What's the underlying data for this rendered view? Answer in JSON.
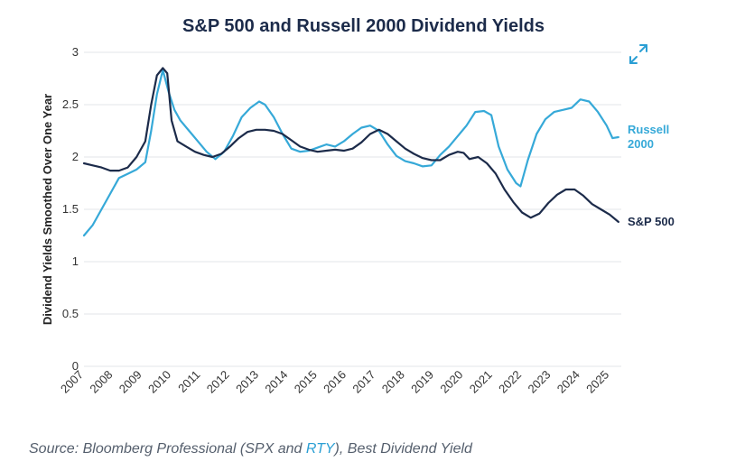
{
  "title": "S&P 500 and Russell 2000 Dividend Yields",
  "expand_icon": "expand-arrows-icon",
  "source": {
    "prefix": "Source: Bloomberg Professional (SPX and ",
    "link": "RTY",
    "suffix": "), Best Dividend Yield"
  },
  "colors": {
    "sp500": "#1c2b4a",
    "russell": "#36a9d8",
    "grid": "#e3e5e8",
    "text": "#333333"
  },
  "chart_data": {
    "type": "line",
    "title": "S&P 500 and Russell 2000 Dividend Yields",
    "xlabel": "",
    "ylabel": "Dividend Yields Smoothed Over One Year",
    "xlim": [
      2007,
      2025.4
    ],
    "ylim": [
      0,
      3
    ],
    "yticks": [
      "0",
      "0.5",
      "1",
      "1.5",
      "2",
      "2.5",
      "3"
    ],
    "xticks": [
      "2007",
      "2008",
      "2009",
      "2010",
      "2011",
      "2012",
      "2013",
      "2014",
      "2015",
      "2016",
      "2017",
      "2018",
      "2019",
      "2020",
      "2021",
      "2022",
      "2023",
      "2024",
      "2025"
    ],
    "grid": "horizontal",
    "legend": "inline-right",
    "series": [
      {
        "name": "S&P 500",
        "color": "#1c2b4a",
        "label_lines": [
          "S&P 500"
        ],
        "x": [
          2007.0,
          2007.3,
          2007.6,
          2007.9,
          2008.2,
          2008.5,
          2008.8,
          2009.1,
          2009.3,
          2009.5,
          2009.7,
          2009.85,
          2010.0,
          2010.2,
          2010.5,
          2010.8,
          2011.1,
          2011.4,
          2011.7,
          2012.0,
          2012.3,
          2012.6,
          2012.9,
          2013.2,
          2013.5,
          2013.8,
          2014.1,
          2014.4,
          2014.7,
          2015.0,
          2015.3,
          2015.6,
          2015.9,
          2016.2,
          2016.5,
          2016.8,
          2017.1,
          2017.4,
          2017.7,
          2018.0,
          2018.3,
          2018.6,
          2018.9,
          2019.2,
          2019.5,
          2019.8,
          2020.0,
          2020.2,
          2020.5,
          2020.8,
          2021.1,
          2021.4,
          2021.7,
          2022.0,
          2022.3,
          2022.6,
          2022.9,
          2023.2,
          2023.5,
          2023.8,
          2024.1,
          2024.4,
          2024.7,
          2025.0,
          2025.3
        ],
        "y": [
          1.94,
          1.92,
          1.9,
          1.87,
          1.87,
          1.9,
          2.0,
          2.15,
          2.5,
          2.78,
          2.85,
          2.8,
          2.35,
          2.15,
          2.1,
          2.05,
          2.02,
          2.0,
          2.03,
          2.1,
          2.18,
          2.24,
          2.26,
          2.26,
          2.25,
          2.22,
          2.16,
          2.1,
          2.07,
          2.05,
          2.06,
          2.07,
          2.06,
          2.08,
          2.14,
          2.22,
          2.26,
          2.22,
          2.15,
          2.08,
          2.03,
          1.99,
          1.97,
          1.97,
          2.02,
          2.05,
          2.04,
          1.98,
          2.0,
          1.94,
          1.84,
          1.69,
          1.57,
          1.47,
          1.42,
          1.46,
          1.56,
          1.64,
          1.69,
          1.69,
          1.63,
          1.55,
          1.5,
          1.45,
          1.38
        ]
      },
      {
        "name": "Russell 2000",
        "color": "#36a9d8",
        "label_lines": [
          "Russell",
          "2000"
        ],
        "x": [
          2007.0,
          2007.3,
          2007.6,
          2007.9,
          2008.2,
          2008.5,
          2008.8,
          2009.1,
          2009.3,
          2009.5,
          2009.7,
          2009.9,
          2010.1,
          2010.3,
          2010.6,
          2010.9,
          2011.2,
          2011.5,
          2011.8,
          2012.1,
          2012.4,
          2012.7,
          2013.0,
          2013.2,
          2013.5,
          2013.8,
          2014.1,
          2014.4,
          2014.7,
          2015.0,
          2015.3,
          2015.6,
          2015.9,
          2016.2,
          2016.5,
          2016.8,
          2017.1,
          2017.4,
          2017.7,
          2018.0,
          2018.3,
          2018.6,
          2018.9,
          2019.2,
          2019.5,
          2019.8,
          2020.1,
          2020.4,
          2020.7,
          2020.95,
          2021.2,
          2021.5,
          2021.8,
          2021.95,
          2022.2,
          2022.5,
          2022.8,
          2023.1,
          2023.4,
          2023.7,
          2024.0,
          2024.3,
          2024.6,
          2024.9,
          2025.1,
          2025.3
        ],
        "y": [
          1.25,
          1.35,
          1.5,
          1.65,
          1.8,
          1.84,
          1.88,
          1.95,
          2.25,
          2.6,
          2.83,
          2.62,
          2.45,
          2.35,
          2.25,
          2.15,
          2.05,
          1.98,
          2.05,
          2.2,
          2.38,
          2.47,
          2.53,
          2.5,
          2.38,
          2.22,
          2.08,
          2.05,
          2.06,
          2.09,
          2.12,
          2.1,
          2.15,
          2.22,
          2.28,
          2.3,
          2.25,
          2.12,
          2.01,
          1.96,
          1.94,
          1.91,
          1.92,
          2.02,
          2.1,
          2.2,
          2.3,
          2.43,
          2.44,
          2.4,
          2.1,
          1.88,
          1.75,
          1.72,
          1.97,
          2.22,
          2.36,
          2.43,
          2.45,
          2.47,
          2.55,
          2.53,
          2.43,
          2.3,
          2.18,
          2.19
        ]
      }
    ]
  }
}
